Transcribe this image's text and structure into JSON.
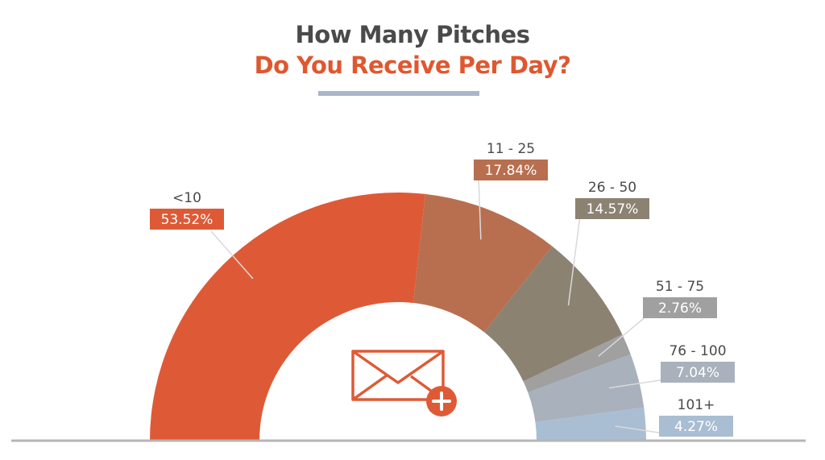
{
  "title": {
    "line1": "How Many Pitches",
    "line2": "Do You Receive Per Day?"
  },
  "colors": {
    "title_dark": "#4a4a4a",
    "title_accent": "#e0572f",
    "rule": "#a9b6cc",
    "baseline": "#b5b5b5"
  },
  "chart_data": {
    "type": "pie",
    "variant": "half-donut",
    "title": "How Many Pitches Do You Receive Per Day?",
    "categories": [
      "<10",
      "11 - 25",
      "26 - 50",
      "51 - 75",
      "76 - 100",
      "101+"
    ],
    "values": [
      53.52,
      17.84,
      14.57,
      2.76,
      7.04,
      4.27
    ],
    "value_labels": [
      "53.52%",
      "17.84%",
      "14.57%",
      "2.76%",
      "7.04%",
      "4.27%"
    ],
    "colors": [
      "#de5a36",
      "#b86f4f",
      "#8c8272",
      "#a0a0a0",
      "#a9b1bc",
      "#a9bdd3"
    ],
    "center_icon": "envelope-plus-icon"
  }
}
